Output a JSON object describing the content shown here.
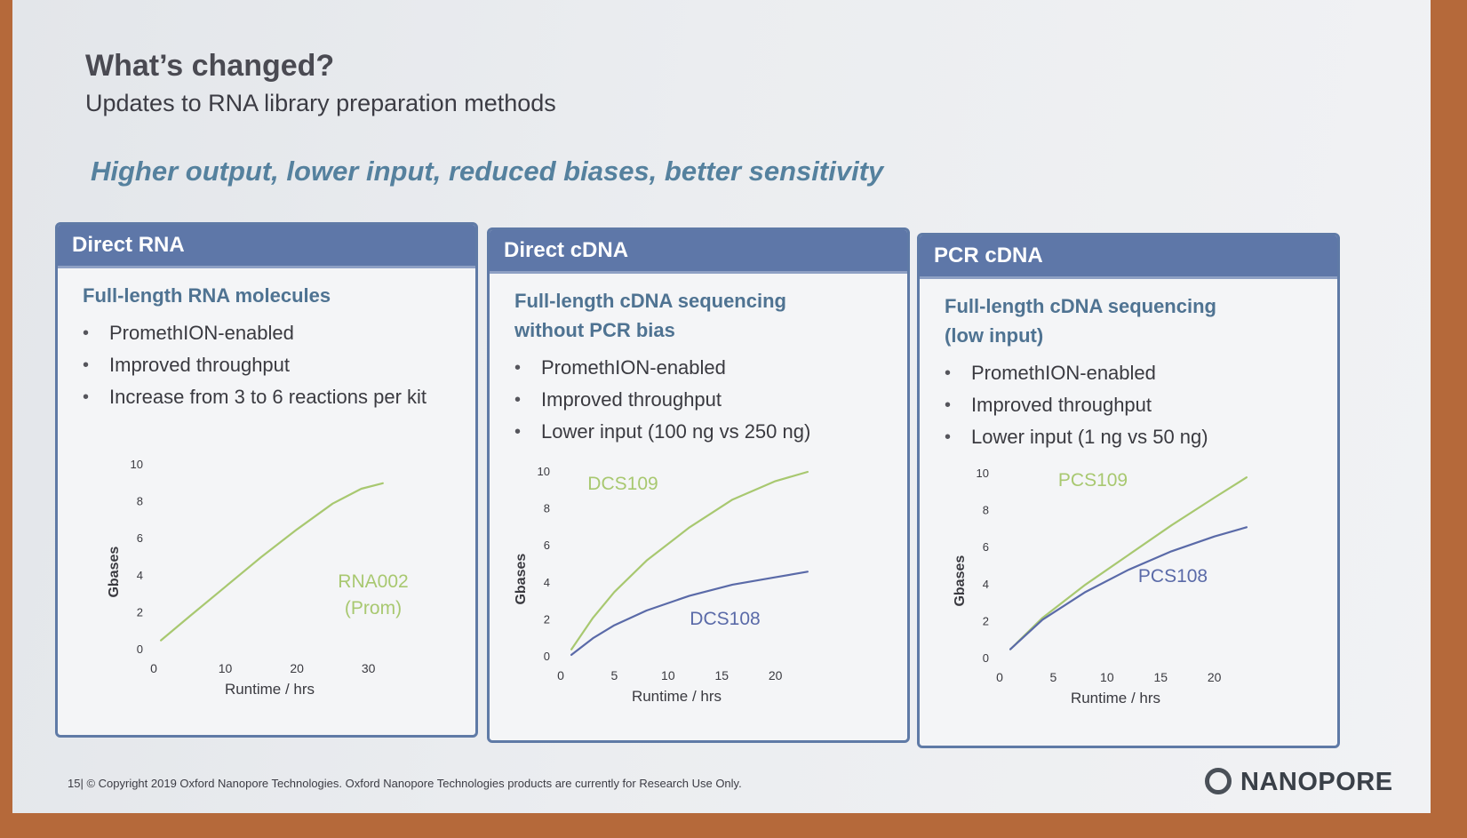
{
  "slide": {
    "title": "What’s changed?",
    "subtitle": "Updates to RNA library preparation methods",
    "tagline": "Higher output, lower input, reduced biases, better sensitivity",
    "footer": "15| © Copyright 2019 Oxford Nanopore Technologies. Oxford Nanopore Technologies products are currently for Research Use Only.",
    "logo_text": "NANOPORE"
  },
  "colors": {
    "header": "#5e77a8",
    "green_series": "#a8c870",
    "blue_series": "#5a6aa8",
    "heading_text": "#4f7392"
  },
  "panels": [
    {
      "header": "Direct RNA",
      "heading_lines": [
        "Full-length RNA molecules"
      ],
      "bullets": [
        "PromethION-enabled",
        "Improved throughput",
        "Increase from 3 to 6 reactions per kit"
      ]
    },
    {
      "header": "Direct cDNA",
      "heading_lines": [
        "Full-length cDNA sequencing",
        "without PCR bias"
      ],
      "bullets": [
        "PromethION-enabled",
        "Improved throughput",
        "Lower input (100 ng vs 250 ng)"
      ]
    },
    {
      "header": "PCR cDNA",
      "heading_lines": [
        "Full-length cDNA sequencing",
        "(low input)"
      ],
      "bullets": [
        "PromethION-enabled",
        "Improved throughput",
        "Lower input (1 ng vs 50 ng)"
      ]
    }
  ],
  "chart_data": [
    {
      "type": "line",
      "xlabel": "Runtime / hrs",
      "ylabel": "Gbases",
      "xlim": [
        0,
        36
      ],
      "ylim": [
        0,
        10
      ],
      "xticks": [
        0,
        10,
        20,
        30
      ],
      "yticks": [
        0,
        2,
        4,
        6,
        8,
        10
      ],
      "series": [
        {
          "name": "RNA002 (Prom)",
          "label_lines": [
            "RNA002",
            "(Prom)"
          ],
          "color": "green",
          "x": [
            1,
            5,
            10,
            15,
            20,
            25,
            29,
            32
          ],
          "y": [
            0.5,
            1.8,
            3.4,
            5.0,
            6.5,
            7.9,
            8.7,
            9.0
          ]
        }
      ]
    },
    {
      "type": "line",
      "xlabel": "Runtime / hrs",
      "ylabel": "Gbases",
      "xlim": [
        0,
        24
      ],
      "ylim": [
        0,
        10
      ],
      "xticks": [
        0,
        5,
        10,
        15,
        20
      ],
      "yticks": [
        0,
        2,
        4,
        6,
        8,
        10
      ],
      "series": [
        {
          "name": "DCS109",
          "label_lines": [
            "DCS109"
          ],
          "color": "green",
          "x": [
            1,
            3,
            5,
            8,
            12,
            16,
            20,
            23
          ],
          "y": [
            0.4,
            2.1,
            3.5,
            5.2,
            7.0,
            8.5,
            9.5,
            10.0
          ]
        },
        {
          "name": "DCS108",
          "label_lines": [
            "DCS108"
          ],
          "color": "blue",
          "x": [
            1,
            3,
            5,
            8,
            12,
            16,
            20,
            23
          ],
          "y": [
            0.1,
            1.0,
            1.7,
            2.5,
            3.3,
            3.9,
            4.3,
            4.6
          ]
        }
      ]
    },
    {
      "type": "line",
      "xlabel": "Runtime / hrs",
      "ylabel": "Gbases",
      "xlim": [
        0,
        24
      ],
      "ylim": [
        0,
        10
      ],
      "xticks": [
        0,
        5,
        10,
        15,
        20
      ],
      "yticks": [
        0,
        2,
        4,
        6,
        8,
        10
      ],
      "series": [
        {
          "name": "PCS109",
          "label_lines": [
            "PCS109"
          ],
          "color": "green",
          "x": [
            1,
            4,
            8,
            12,
            16,
            20,
            23
          ],
          "y": [
            0.5,
            2.2,
            4.0,
            5.6,
            7.2,
            8.7,
            9.8
          ]
        },
        {
          "name": "PCS108",
          "label_lines": [
            "PCS108"
          ],
          "color": "blue",
          "x": [
            1,
            4,
            8,
            12,
            16,
            20,
            23
          ],
          "y": [
            0.5,
            2.1,
            3.6,
            4.8,
            5.8,
            6.6,
            7.1
          ]
        }
      ]
    }
  ]
}
